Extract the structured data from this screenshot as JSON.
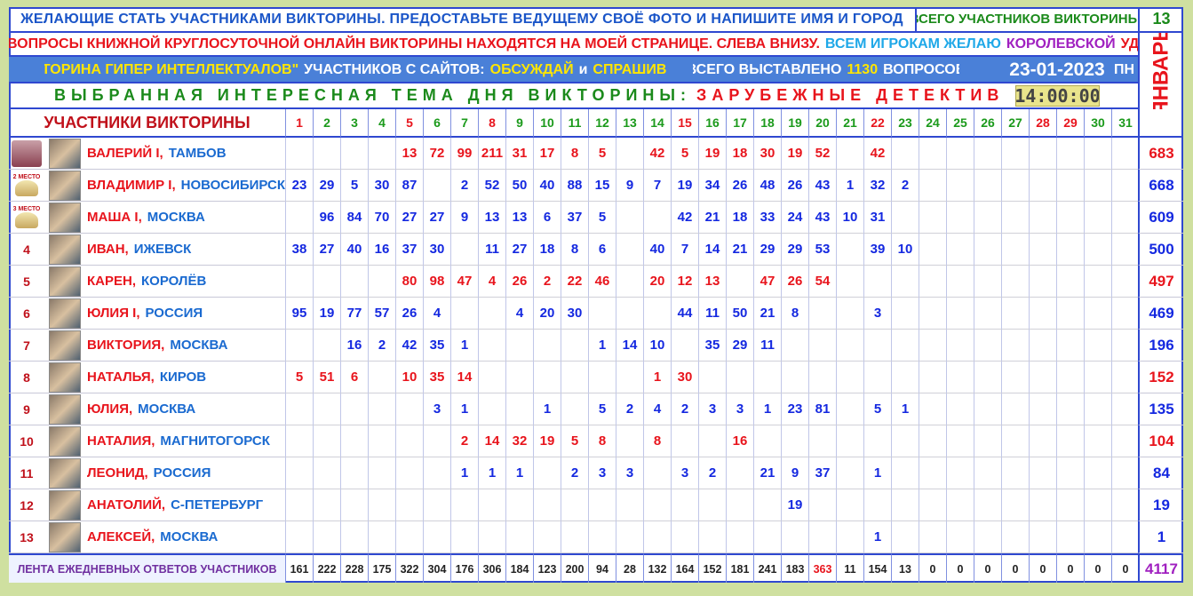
{
  "header": {
    "line1": "ЖЕЛАЮЩИЕ СТАТЬ УЧАСТНИКАМИ ВИКТОРИНЫ. ПРЕДОСТАВЬТЕ ВЕДУЩЕМУ СВОЁ ФОТО И НАПИШИТЕ ИМЯ И ГОРОД",
    "participants_label": "ВСЕГО УЧАСТНИКОВ ВИКТОРИНЫ:",
    "participants_count": 13,
    "line2": {
      "text": "ВСЕ ВОПРОСЫ КНИЖНОЙ КРУГЛОСУТОЧНОЙ ОНЛАЙН ВИКТОРИНЫ НАХОДЯТСЯ НА МОЕЙ СТРАНИЦЕ. СЛЕВА ВНИЗУ.",
      "wish": "ВСЕМ ИГРОКАМ ЖЕЛАЮ",
      "royal": "КОРОЛЕВСКОЙ",
      "luck": "УДАЧИ!"
    },
    "line3": {
      "quiz_name": "\"ВИКТОРИНА ГИПЕР ИНТЕЛЛЕКТУАЛОВ\"",
      "from_sites": "УЧАСТНИКОВ С САЙТОВ:",
      "site1": "ОБСУЖДАЙ",
      "and": "и",
      "site2": "СПРАШИВАЛКА",
      "total_label": "ВСЕГО ВЫСТАВЛЕНО",
      "total_questions": 1130,
      "questions_word": "ВОПРОСОВ",
      "date": "23-01-2023",
      "weekday": "ПН"
    },
    "topic_label": "ВЫБРАННАЯ ИНТЕРЕСНАЯ ТЕМА ДНЯ ВИКТОРИНЫ:",
    "topic": "ЗАРУБЕЖНЫЕ ДЕТЕКТИВЫ",
    "time": "14:00:00",
    "month": "ЯНВАРЬ"
  },
  "table": {
    "participants_label": "УЧАСТНИКИ ВИКТОРИНЫ",
    "days": [
      1,
      2,
      3,
      4,
      5,
      6,
      7,
      8,
      9,
      10,
      11,
      12,
      13,
      14,
      15,
      16,
      17,
      18,
      19,
      20,
      21,
      22,
      23,
      24,
      25,
      26,
      27,
      28,
      29,
      30,
      31
    ],
    "rows": [
      {
        "name": "ВАЛЕРИЙ I,",
        "city": "ТАМБОВ",
        "color": "#e8141c",
        "days": [
          null,
          null,
          null,
          null,
          13,
          72,
          99,
          211,
          31,
          17,
          8,
          5,
          null,
          42,
          5,
          19,
          18,
          30,
          19,
          52,
          null,
          42,
          null,
          null,
          null,
          null,
          null,
          null,
          null,
          null,
          null
        ],
        "total": 683
      },
      {
        "rank": "2 МЕСТО",
        "name": "ВЛАДИМИР I,",
        "city": "НОВОСИБИРСК",
        "color": "#1428e0",
        "days": [
          23,
          29,
          5,
          30,
          87,
          null,
          2,
          52,
          50,
          40,
          88,
          15,
          9,
          7,
          19,
          34,
          26,
          48,
          26,
          43,
          1,
          32,
          2,
          null,
          null,
          null,
          null,
          null,
          null,
          null,
          null
        ],
        "total": 668
      },
      {
        "rank": "3 МЕСТО",
        "name": "МАША I,",
        "city": "МОСКВА",
        "color": "#1428e0",
        "days": [
          null,
          96,
          84,
          70,
          27,
          27,
          9,
          13,
          13,
          6,
          37,
          5,
          null,
          null,
          42,
          21,
          18,
          33,
          24,
          43,
          10,
          31,
          null,
          null,
          null,
          null,
          null,
          null,
          null,
          null,
          null
        ],
        "total": 609
      },
      {
        "rank": 4,
        "name": "ИВАН,",
        "city": "ИЖЕВСК",
        "color": "#1428e0",
        "days": [
          38,
          27,
          40,
          16,
          37,
          30,
          null,
          11,
          27,
          18,
          8,
          6,
          null,
          40,
          7,
          14,
          21,
          29,
          29,
          53,
          null,
          39,
          10,
          null,
          null,
          null,
          null,
          null,
          null,
          null,
          null
        ],
        "total": 500
      },
      {
        "rank": 5,
        "name": "КАРЕН,",
        "city": "КОРОЛЁВ",
        "color": "#e8141c",
        "days": [
          null,
          null,
          null,
          null,
          80,
          98,
          47,
          4,
          26,
          2,
          22,
          46,
          null,
          20,
          12,
          13,
          null,
          47,
          26,
          54,
          null,
          null,
          null,
          null,
          null,
          null,
          null,
          null,
          null,
          null,
          null
        ],
        "total": 497
      },
      {
        "rank": 6,
        "name": "ЮЛИЯ I,",
        "city": "РОССИЯ",
        "color": "#1428e0",
        "days": [
          95,
          19,
          77,
          57,
          26,
          4,
          null,
          null,
          4,
          20,
          30,
          null,
          null,
          null,
          44,
          11,
          50,
          21,
          8,
          null,
          null,
          3,
          null,
          null,
          null,
          null,
          null,
          null,
          null,
          null,
          null
        ],
        "total": 469
      },
      {
        "rank": 7,
        "name": "ВИКТОРИЯ,",
        "city": "МОСКВА",
        "color": "#1428e0",
        "days": [
          null,
          null,
          16,
          2,
          42,
          35,
          1,
          null,
          null,
          null,
          null,
          1,
          14,
          10,
          null,
          35,
          29,
          11,
          null,
          null,
          null,
          null,
          null,
          null,
          null,
          null,
          null,
          null,
          null,
          null,
          null
        ],
        "total": 196
      },
      {
        "rank": 8,
        "name": "НАТАЛЬЯ,",
        "city": "КИРОВ",
        "color": "#e8141c",
        "days": [
          5,
          51,
          6,
          null,
          10,
          35,
          14,
          null,
          null,
          null,
          null,
          null,
          null,
          1,
          30,
          null,
          null,
          null,
          null,
          null,
          null,
          null,
          null,
          null,
          null,
          null,
          null,
          null,
          null,
          null,
          null
        ],
        "total": 152
      },
      {
        "rank": 9,
        "name": "ЮЛИЯ,",
        "city": "МОСКВА",
        "color": "#1428e0",
        "days": [
          null,
          null,
          null,
          null,
          null,
          3,
          1,
          null,
          null,
          1,
          null,
          5,
          2,
          4,
          2,
          3,
          3,
          1,
          23,
          81,
          null,
          5,
          1,
          null,
          null,
          null,
          null,
          null,
          null,
          null,
          null
        ],
        "total": 135
      },
      {
        "rank": 10,
        "name": "НАТАЛИЯ,",
        "city": "МАГНИТОГОРСК",
        "color": "#e8141c",
        "days": [
          null,
          null,
          null,
          null,
          null,
          null,
          2,
          14,
          32,
          19,
          5,
          8,
          null,
          8,
          null,
          null,
          16,
          null,
          null,
          null,
          null,
          null,
          null,
          null,
          null,
          null,
          null,
          null,
          null,
          null,
          null
        ],
        "total": 104
      },
      {
        "rank": 11,
        "name": "ЛЕОНИД,",
        "city": "РОССИЯ",
        "color": "#1428e0",
        "days": [
          null,
          null,
          null,
          null,
          null,
          null,
          1,
          1,
          1,
          null,
          2,
          3,
          3,
          null,
          3,
          2,
          null,
          21,
          9,
          37,
          null,
          1,
          null,
          null,
          null,
          null,
          null,
          null,
          null,
          null,
          null
        ],
        "total": 84
      },
      {
        "rank": 12,
        "name": "АНАТОЛИЙ,",
        "city": "С-ПЕТЕРБУРГ",
        "color": "#1428e0",
        "days": [
          null,
          null,
          null,
          null,
          null,
          null,
          null,
          null,
          null,
          null,
          null,
          null,
          null,
          null,
          null,
          null,
          null,
          null,
          19,
          null,
          null,
          null,
          null,
          null,
          null,
          null,
          null,
          null,
          null,
          null,
          null
        ],
        "total": 19
      },
      {
        "rank": 13,
        "name": "АЛЕКСЕЙ,",
        "city": "МОСКВА",
        "color": "#1428e0",
        "days": [
          null,
          null,
          null,
          null,
          null,
          null,
          null,
          null,
          null,
          null,
          null,
          null,
          null,
          null,
          null,
          null,
          null,
          null,
          null,
          null,
          null,
          1,
          null,
          null,
          null,
          null,
          null,
          null,
          null,
          null,
          null
        ],
        "total": 1
      }
    ],
    "footer": {
      "label": "ЛЕНТА ЕЖЕДНЕВНЫХ ОТВЕТОВ УЧАСТНИКОВ",
      "daily": [
        161,
        222,
        228,
        175,
        322,
        304,
        176,
        306,
        184,
        123,
        200,
        94,
        28,
        132,
        164,
        152,
        181,
        241,
        183,
        363,
        11,
        154,
        13,
        0,
        0,
        0,
        0,
        0,
        0,
        0,
        0
      ],
      "total": 4117
    }
  }
}
